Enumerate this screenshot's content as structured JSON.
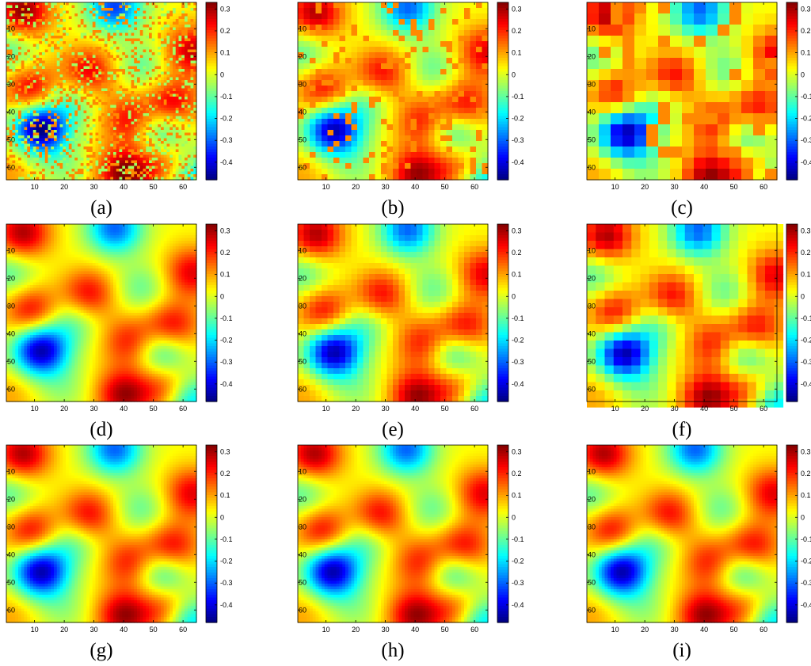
{
  "chart_data": {
    "type": "heatmap",
    "grid_size": 64,
    "xlim": [
      1,
      64
    ],
    "ylim": [
      1,
      64
    ],
    "x_ticks": [
      "10",
      "20",
      "30",
      "40",
      "50",
      "60"
    ],
    "y_ticks": [
      "10",
      "20",
      "30",
      "40",
      "50",
      "60"
    ],
    "colorbar": {
      "colormap": "jet",
      "range": [
        -0.48,
        0.33
      ],
      "ticks": [
        "0.3",
        "0.2",
        "0.1",
        "0",
        "-0.1",
        "-0.2",
        "-0.3",
        "-0.4"
      ],
      "tick_values": [
        0.3,
        0.2,
        0.1,
        0,
        -0.1,
        -0.2,
        -0.3,
        -0.4
      ]
    },
    "field_features": [
      {
        "kind": "peak",
        "x": 6,
        "y": 4,
        "value": 0.3
      },
      {
        "kind": "peak",
        "x": 63,
        "y": 18,
        "value": 0.25
      },
      {
        "kind": "peak",
        "x": 28,
        "y": 26,
        "value": 0.25
      },
      {
        "kind": "peak",
        "x": 9,
        "y": 32,
        "value": 0.25
      },
      {
        "kind": "peak",
        "x": 56,
        "y": 38,
        "value": 0.28
      },
      {
        "kind": "peak",
        "x": 42,
        "y": 43,
        "value": 0.22
      },
      {
        "kind": "peak",
        "x": 40,
        "y": 62,
        "value": 0.3
      },
      {
        "kind": "peak",
        "x": 55,
        "y": 60,
        "value": 0.22
      },
      {
        "kind": "peak",
        "x": 2,
        "y": 62,
        "value": 0.1
      },
      {
        "kind": "trough",
        "x": 12,
        "y": 46,
        "value": -0.45
      },
      {
        "kind": "trough",
        "x": 37,
        "y": 2,
        "value": -0.3
      },
      {
        "kind": "trough",
        "x": 53,
        "y": 46,
        "value": -0.22
      },
      {
        "kind": "trough",
        "x": 23,
        "y": 35,
        "value": -0.12
      },
      {
        "kind": "trough",
        "x": 46,
        "y": 24,
        "value": -0.1
      },
      {
        "kind": "trough",
        "x": 2,
        "y": 18,
        "value": -0.12
      },
      {
        "kind": "trough",
        "x": 62,
        "y": 64,
        "value": -0.25
      },
      {
        "kind": "trough",
        "x": 20,
        "y": 60,
        "value": -0.05
      }
    ],
    "panels": [
      {
        "label": "(a)",
        "rendering": "sparse-noisy",
        "block": 1
      },
      {
        "label": "(b)",
        "rendering": "blocky",
        "block": 2
      },
      {
        "label": "(c)",
        "rendering": "blocky",
        "block": 4
      },
      {
        "label": "(d)",
        "rendering": "smooth",
        "block": 1
      },
      {
        "label": "(e)",
        "rendering": "pixelated",
        "block": 2
      },
      {
        "label": "(f)",
        "rendering": "pixelated",
        "block": 3
      },
      {
        "label": "(g)",
        "rendering": "smooth",
        "block": 1
      },
      {
        "label": "(h)",
        "rendering": "smooth",
        "block": 1
      },
      {
        "label": "(i)",
        "rendering": "smooth",
        "block": 1
      }
    ]
  }
}
